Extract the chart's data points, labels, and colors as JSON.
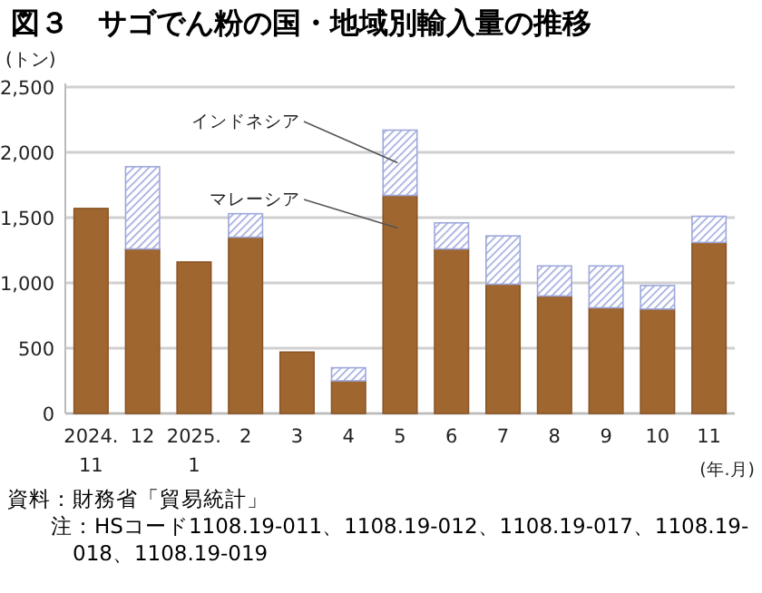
{
  "chart_data": {
    "type": "bar",
    "stacked": true,
    "title": "図３　サゴでん粉の国・地域別輸入量の推移",
    "ylabel": "(トン)",
    "xlabel": "(年.月)",
    "categories": [
      "2024.\n11",
      "12",
      "2025.\n1",
      "2",
      "3",
      "4",
      "5",
      "6",
      "7",
      "8",
      "9",
      "10",
      "11"
    ],
    "series": [
      {
        "name": "マレーシア",
        "color": "#a0662f",
        "values": [
          1570,
          1260,
          1160,
          1350,
          470,
          250,
          1670,
          1260,
          990,
          900,
          810,
          800,
          1310
        ]
      },
      {
        "name": "インドネシア",
        "color": "#9ea8dc",
        "values": [
          null,
          630,
          null,
          180,
          null,
          100,
          500,
          200,
          370,
          230,
          320,
          180,
          200
        ]
      }
    ],
    "ylim": [
      0,
      2500
    ],
    "yticks": [
      {
        "value": 0,
        "label": "0"
      },
      {
        "value": 500,
        "label": "500"
      },
      {
        "value": 1000,
        "label": "1,000"
      },
      {
        "value": 1500,
        "label": "1,500"
      },
      {
        "value": 2000,
        "label": "2,000"
      },
      {
        "value": 2500,
        "label": "2,500"
      }
    ],
    "grid": "y",
    "annotations": [
      "資料：財務省「貿易統計」",
      "注：HSコード1108.19-011、1108.19-012、1108.19-017、1108.19-018、1108.19-019"
    ]
  }
}
